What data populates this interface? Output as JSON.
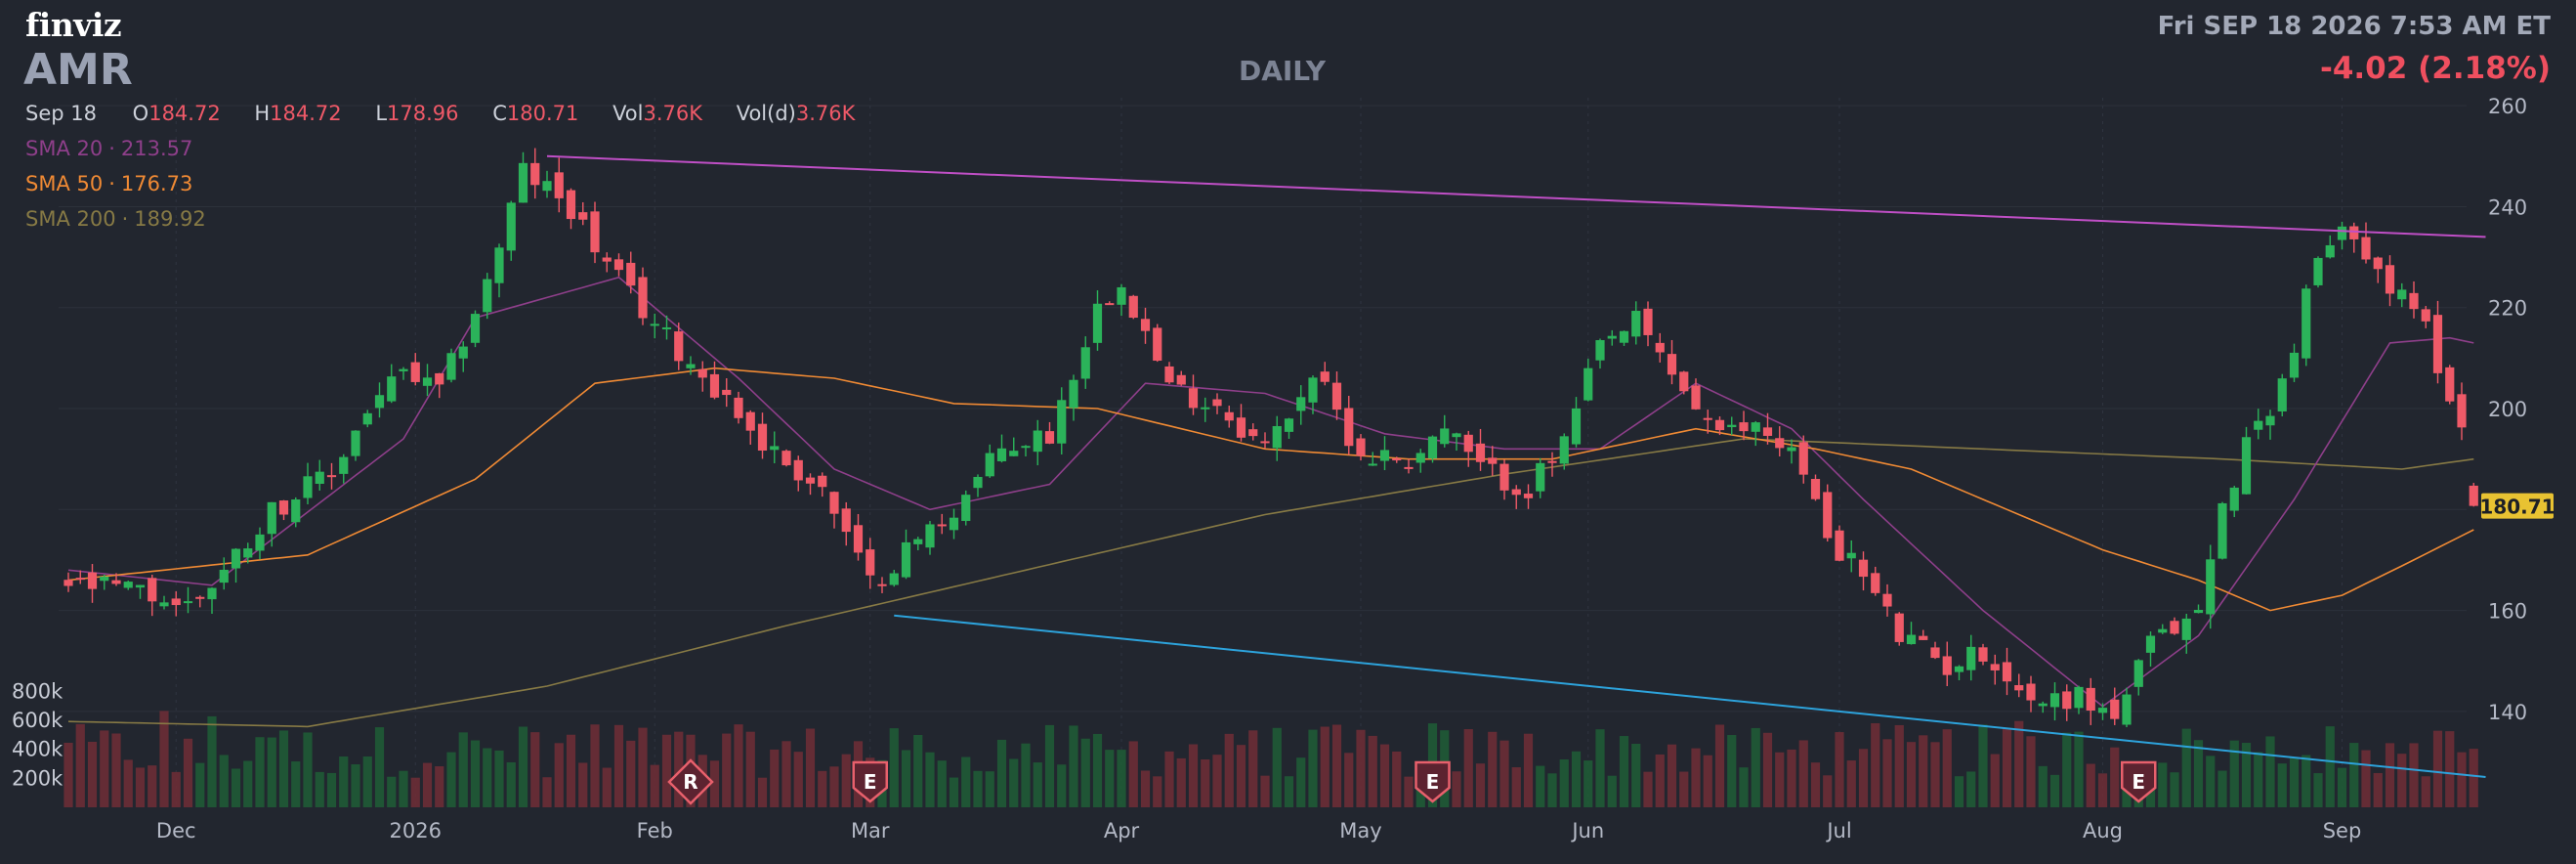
{
  "header": {
    "logo": "finviz",
    "ticker": "AMR",
    "period": "DAILY",
    "datetime": "Fri SEP 18 2026 7:53 AM ET",
    "change": "-4.02 (2.18%)"
  },
  "ohlc": {
    "date": "Sep 18",
    "open_label": "O",
    "open": "184.72",
    "high_label": "H",
    "high": "184.72",
    "low_label": "L",
    "low": "178.96",
    "close_label": "C",
    "close": "180.71",
    "vol_label": "Vol",
    "vol": "3.76K",
    "vold_label": "Vol(d)",
    "vold": "3.76K"
  },
  "sma": [
    {
      "label": "SMA 20",
      "sep": "·",
      "value": "213.57",
      "color": "#8e3f8a"
    },
    {
      "label": "SMA 50",
      "sep": "·",
      "value": "176.73",
      "color": "#f08a34"
    },
    {
      "label": "SMA 200",
      "sep": "·",
      "value": "189.92",
      "color": "#877a45"
    }
  ],
  "chart_data": {
    "type": "candlestick",
    "price_axis": {
      "ticks": [
        140,
        160,
        180,
        200,
        220,
        240,
        260
      ],
      "range": [
        127,
        261
      ],
      "side": "right"
    },
    "volume_axis": {
      "ticks": [
        "800k",
        "600k",
        "400k",
        "200k"
      ],
      "values": [
        800000,
        600000,
        400000,
        200000
      ],
      "side": "left"
    },
    "x_labels": [
      {
        "label": "Dec",
        "index": 9
      },
      {
        "label": "2026",
        "index": 29
      },
      {
        "label": "Feb",
        "index": 49
      },
      {
        "label": "Mar",
        "index": 67
      },
      {
        "label": "Apr",
        "index": 88
      },
      {
        "label": "May",
        "index": 108
      },
      {
        "label": "Jun",
        "index": 127
      },
      {
        "label": "Jul",
        "index": 148
      },
      {
        "label": "Aug",
        "index": 170
      },
      {
        "label": "Sep",
        "index": 190
      }
    ],
    "last_price": "180.71",
    "price_anchors": [
      [
        0,
        165
      ],
      [
        5,
        164
      ],
      [
        10,
        161
      ],
      [
        13,
        168
      ],
      [
        17,
        180
      ],
      [
        22,
        187
      ],
      [
        25,
        200
      ],
      [
        28,
        207
      ],
      [
        31,
        203
      ],
      [
        35,
        225
      ],
      [
        38,
        247
      ],
      [
        42,
        240
      ],
      [
        45,
        228
      ],
      [
        50,
        214
      ],
      [
        55,
        202
      ],
      [
        58,
        193
      ],
      [
        63,
        184
      ],
      [
        67,
        165
      ],
      [
        70,
        172
      ],
      [
        74,
        180
      ],
      [
        78,
        192
      ],
      [
        82,
        195
      ],
      [
        86,
        220
      ],
      [
        88,
        226
      ],
      [
        92,
        204
      ],
      [
        96,
        201
      ],
      [
        100,
        192
      ],
      [
        104,
        207
      ],
      [
        108,
        191
      ],
      [
        112,
        190
      ],
      [
        115,
        196
      ],
      [
        118,
        188
      ],
      [
        122,
        184
      ],
      [
        125,
        193
      ],
      [
        128,
        212
      ],
      [
        131,
        217
      ],
      [
        134,
        207
      ],
      [
        138,
        194
      ],
      [
        141,
        197
      ],
      [
        144,
        192
      ],
      [
        147,
        175
      ],
      [
        150,
        167
      ],
      [
        153,
        155
      ],
      [
        157,
        149
      ],
      [
        160,
        152
      ],
      [
        164,
        142
      ],
      [
        168,
        143
      ],
      [
        171,
        139
      ],
      [
        174,
        153
      ],
      [
        178,
        160
      ],
      [
        180,
        180
      ],
      [
        182,
        193
      ],
      [
        185,
        205
      ],
      [
        188,
        230
      ],
      [
        191,
        236
      ],
      [
        194,
        224
      ],
      [
        197,
        216
      ],
      [
        200,
        196
      ],
      [
        201,
        180
      ]
    ],
    "sma20_anchors": [
      [
        0,
        168
      ],
      [
        12,
        165
      ],
      [
        28,
        194
      ],
      [
        34,
        218
      ],
      [
        46,
        226
      ],
      [
        56,
        206
      ],
      [
        64,
        188
      ],
      [
        72,
        180
      ],
      [
        82,
        185
      ],
      [
        90,
        205
      ],
      [
        100,
        203
      ],
      [
        110,
        195
      ],
      [
        120,
        192
      ],
      [
        128,
        192
      ],
      [
        136,
        205
      ],
      [
        144,
        196
      ],
      [
        150,
        182
      ],
      [
        160,
        160
      ],
      [
        170,
        141
      ],
      [
        178,
        155
      ],
      [
        186,
        182
      ],
      [
        194,
        213
      ],
      [
        199,
        214
      ],
      [
        201,
        213
      ]
    ],
    "sma50_anchors": [
      [
        0,
        166
      ],
      [
        20,
        171
      ],
      [
        34,
        186
      ],
      [
        44,
        205
      ],
      [
        54,
        208
      ],
      [
        64,
        206
      ],
      [
        74,
        201
      ],
      [
        86,
        200
      ],
      [
        100,
        192
      ],
      [
        112,
        190
      ],
      [
        124,
        190
      ],
      [
        136,
        196
      ],
      [
        146,
        192
      ],
      [
        154,
        188
      ],
      [
        162,
        180
      ],
      [
        170,
        172
      ],
      [
        178,
        166
      ],
      [
        184,
        160
      ],
      [
        190,
        163
      ],
      [
        196,
        170
      ],
      [
        201,
        176
      ]
    ],
    "sma200_anchors": [
      [
        0,
        138
      ],
      [
        20,
        137
      ],
      [
        40,
        145
      ],
      [
        60,
        157
      ],
      [
        80,
        168
      ],
      [
        100,
        179
      ],
      [
        120,
        187
      ],
      [
        140,
        194
      ],
      [
        160,
        192
      ],
      [
        180,
        190
      ],
      [
        195,
        188
      ],
      [
        201,
        190
      ]
    ],
    "trendlines": [
      {
        "from": [
          40,
          250
        ],
        "to": [
          202,
          234
        ],
        "color": "#c04fc6"
      },
      {
        "from": [
          69,
          159
        ],
        "to": [
          202,
          127
        ],
        "color": "#2da3dc"
      }
    ],
    "events": [
      {
        "letter": "R",
        "index": 52,
        "shape": "diamond"
      },
      {
        "letter": "E",
        "index": 67,
        "shape": "shield"
      },
      {
        "letter": "E",
        "index": 114,
        "shape": "shield"
      },
      {
        "letter": "E",
        "index": 173,
        "shape": "shield"
      }
    ],
    "candle_count": 202
  }
}
